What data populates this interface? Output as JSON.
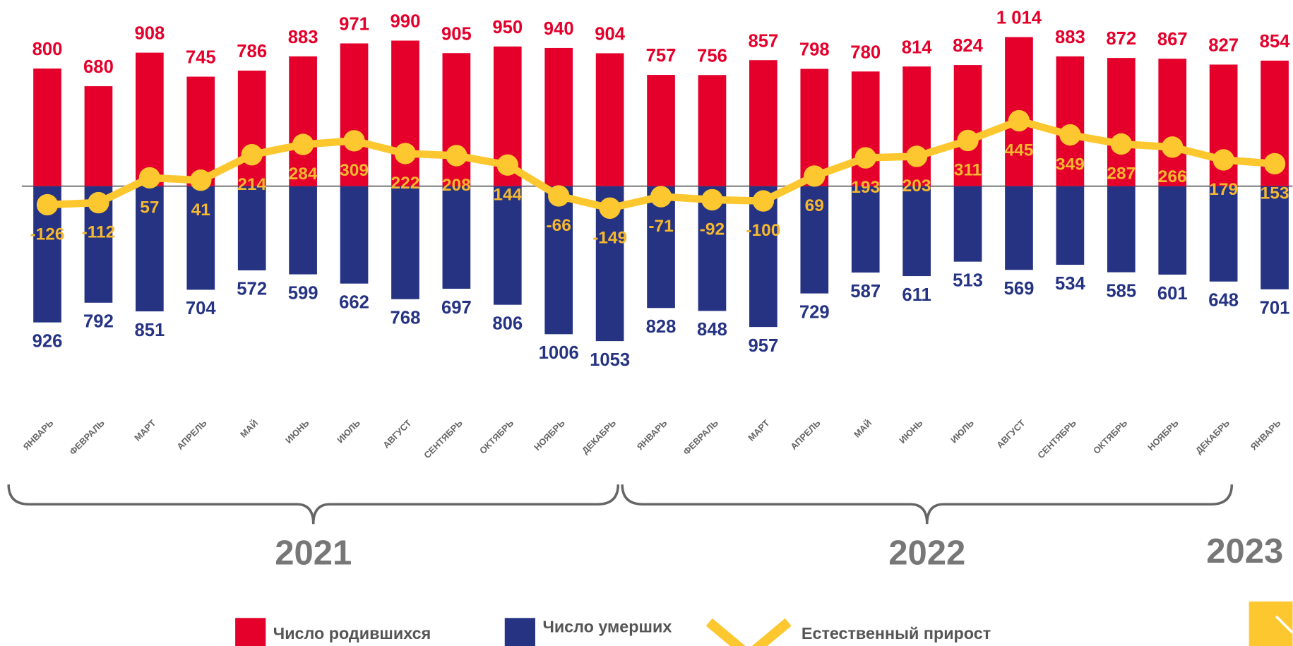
{
  "chart_data": {
    "type": "bar-line",
    "categories": [
      "ЯНВАРЬ",
      "ФЕВРАЛЬ",
      "МАРТ",
      "АПРЕЛЬ",
      "МАЙ",
      "ИЮНЬ",
      "ИЮЛЬ",
      "АВГУСТ",
      "СЕНТЯБРЬ",
      "ОКТЯБРЬ",
      "НОЯБРЬ",
      "ДЕКАБРЬ",
      "ЯНВАРЬ",
      "ФЕВРАЛЬ",
      "МАРТ",
      "АПРЕЛЬ",
      "МАЙ",
      "ИЮНЬ",
      "ИЮЛЬ",
      "АВГУСТ",
      "СЕНТЯБРЬ",
      "ОКТЯБРЬ",
      "НОЯБРЬ",
      "ДЕКАБРЬ",
      "ЯНВАРЬ"
    ],
    "years": [
      "2021",
      "2022",
      "2023"
    ],
    "series": [
      {
        "name": "Число родившихся",
        "color": "#e4002b",
        "type": "bar",
        "direction": "up",
        "values": [
          800,
          680,
          908,
          745,
          786,
          883,
          971,
          990,
          905,
          950,
          940,
          904,
          757,
          756,
          857,
          798,
          780,
          814,
          824,
          1014,
          883,
          872,
          867,
          827,
          854
        ],
        "value_labels": [
          "800",
          "680",
          "908",
          "745",
          "786",
          "883",
          "971",
          "990",
          "905",
          "950",
          "940",
          "904",
          "757",
          "756",
          "857",
          "798",
          "780",
          "814",
          "824",
          "1 014",
          "883",
          "872",
          "867",
          "827",
          "854"
        ]
      },
      {
        "name": "Число умерших",
        "color": "#263383",
        "type": "bar",
        "direction": "down",
        "values": [
          926,
          792,
          851,
          704,
          572,
          599,
          662,
          768,
          697,
          806,
          1006,
          1053,
          828,
          848,
          957,
          729,
          587,
          611,
          513,
          569,
          534,
          585,
          601,
          648,
          701
        ]
      },
      {
        "name": "Естественный прирост",
        "color": "#fdc82f",
        "type": "line",
        "values": [
          -126,
          -112,
          57,
          41,
          214,
          284,
          309,
          222,
          208,
          144,
          -66,
          -149,
          -71,
          -92,
          -100,
          69,
          193,
          203,
          311,
          445,
          349,
          287,
          266,
          179,
          153
        ]
      }
    ]
  }
}
